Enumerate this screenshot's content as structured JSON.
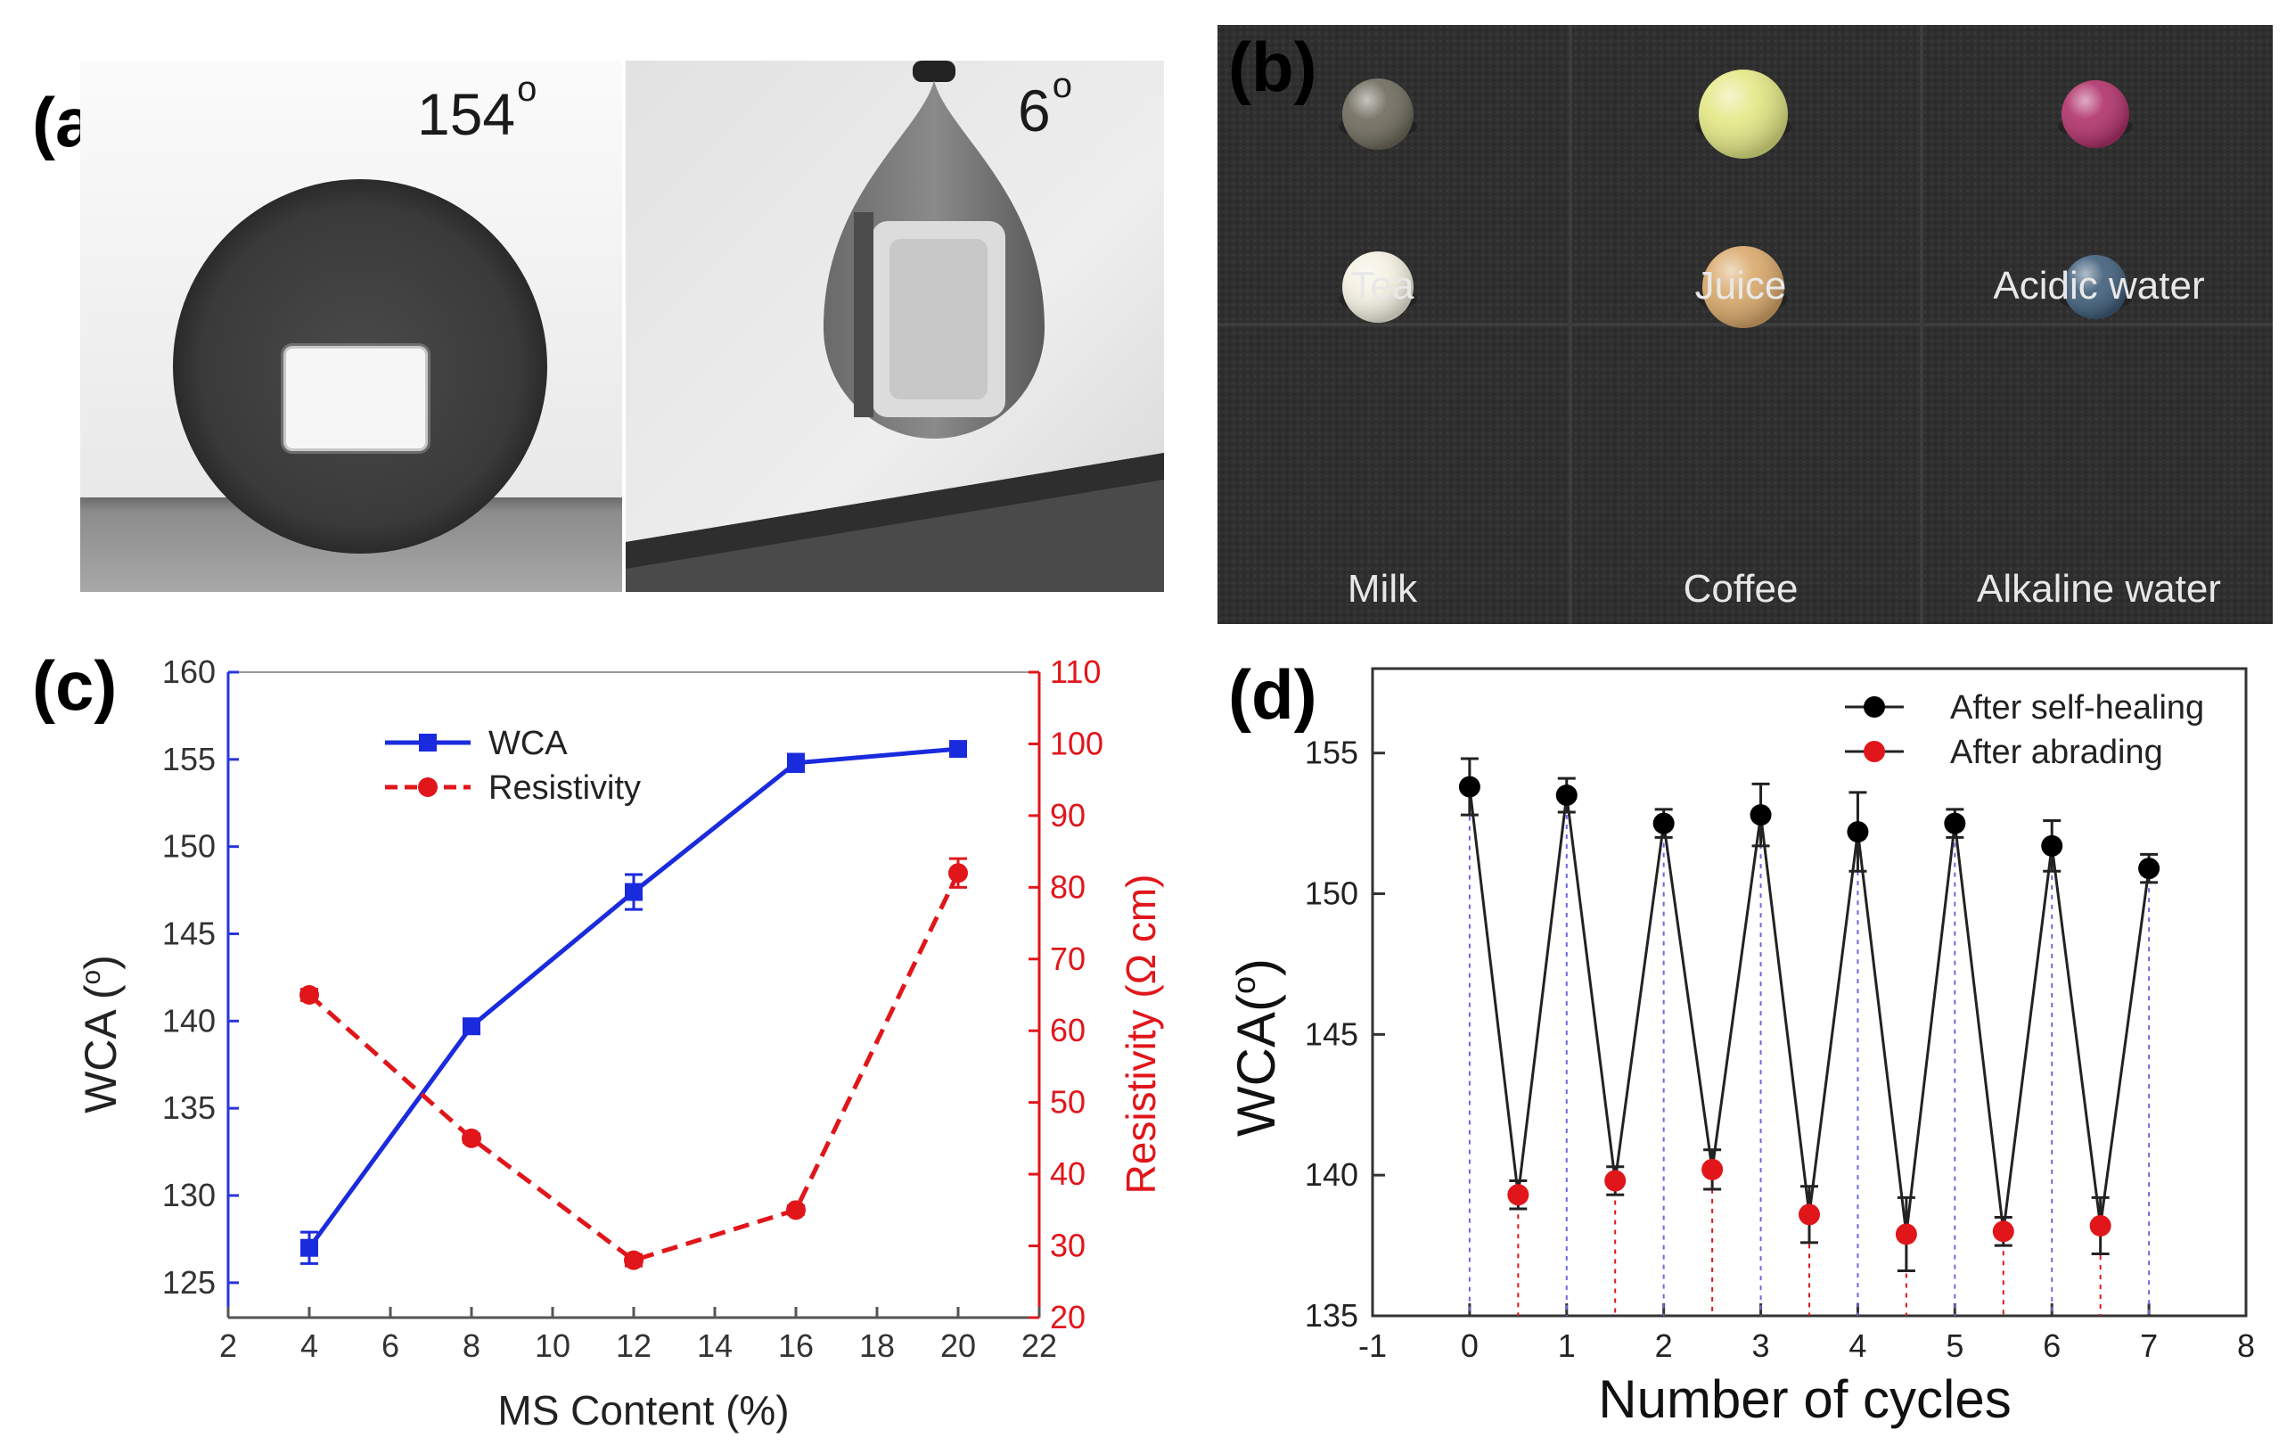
{
  "panels": {
    "a": {
      "label": "(a)",
      "left_angle": "154",
      "right_angle": "6",
      "degree_mark": "o"
    },
    "b": {
      "label": "(b)",
      "liquids": [
        {
          "name": "Tea",
          "color": "#6e6a5c"
        },
        {
          "name": "Juice",
          "color": "#e4e884"
        },
        {
          "name": "Acidic water",
          "color": "#b0306a"
        },
        {
          "name": "Milk",
          "color": "#f4f1e2"
        },
        {
          "name": "Coffee",
          "color": "#d9a86a"
        },
        {
          "name": "Alkaline water",
          "color": "#3f5e7a"
        }
      ]
    },
    "c": {
      "label": "(c)"
    },
    "d": {
      "label": "(d)"
    }
  },
  "chart_data": [
    {
      "id": "c",
      "type": "line",
      "xlabel": "MS Content (%)",
      "ylabel_left": "WCA (",
      "ylabel_left_deg": "o",
      "ylabel_left_close": ")",
      "ylabel_right": "Resistivity (Ω cm)",
      "xlim": [
        2,
        22
      ],
      "xticks": [
        2,
        4,
        6,
        8,
        10,
        12,
        14,
        16,
        18,
        20,
        22
      ],
      "ylim_left": [
        123,
        160
      ],
      "yticks_left": [
        125,
        130,
        135,
        140,
        145,
        150,
        155,
        160
      ],
      "ylim_right": [
        20,
        110
      ],
      "yticks_right": [
        20,
        30,
        40,
        50,
        60,
        70,
        80,
        90,
        100,
        110
      ],
      "legend_position": "top-left",
      "series": [
        {
          "name": "WCA",
          "axis": "left",
          "color": "#1a2bdd",
          "style": "solid",
          "marker": "square",
          "x": [
            4,
            8,
            12,
            16,
            20
          ],
          "y": [
            127.0,
            139.7,
            147.4,
            154.8,
            155.6
          ],
          "err": [
            0.9,
            0.3,
            1.0,
            0.5,
            0.4
          ]
        },
        {
          "name": "Resistivity",
          "axis": "right",
          "color": "#e0161b",
          "style": "dashed",
          "marker": "circle",
          "x": [
            4,
            8,
            12,
            16,
            20
          ],
          "y": [
            65,
            45,
            28,
            35,
            82
          ],
          "err": [
            0.8,
            0.6,
            0.8,
            0.6,
            2.0
          ]
        }
      ]
    },
    {
      "id": "d",
      "type": "line",
      "xlabel": "Number of cycles",
      "ylabel": "WCA(",
      "ylabel_deg": "o",
      "ylabel_close": ")",
      "xlim": [
        -1,
        8
      ],
      "xticks": [
        -1,
        0,
        1,
        2,
        3,
        4,
        5,
        6,
        7,
        8
      ],
      "ylim": [
        135,
        158
      ],
      "yticks": [
        135,
        140,
        145,
        150,
        155
      ],
      "legend_position": "top-right",
      "series": [
        {
          "name": "After self-healing",
          "color": "#000000",
          "marker": "circle",
          "x": [
            0,
            1,
            2,
            3,
            4,
            5,
            6,
            7
          ],
          "y": [
            153.8,
            153.5,
            152.5,
            152.8,
            152.2,
            152.5,
            151.7,
            150.9
          ],
          "err": [
            1.0,
            0.6,
            0.5,
            1.1,
            1.4,
            0.5,
            0.9,
            0.5
          ]
        },
        {
          "name": "After abrading",
          "color": "#e0161b",
          "marker": "circle",
          "x": [
            0.5,
            1.5,
            2.5,
            3.5,
            4.5,
            5.5,
            6.5
          ],
          "y": [
            139.3,
            139.8,
            140.2,
            138.6,
            137.9,
            138.0,
            138.2
          ],
          "err": [
            0.5,
            0.5,
            0.7,
            1.0,
            1.3,
            0.5,
            1.0
          ]
        }
      ]
    }
  ]
}
